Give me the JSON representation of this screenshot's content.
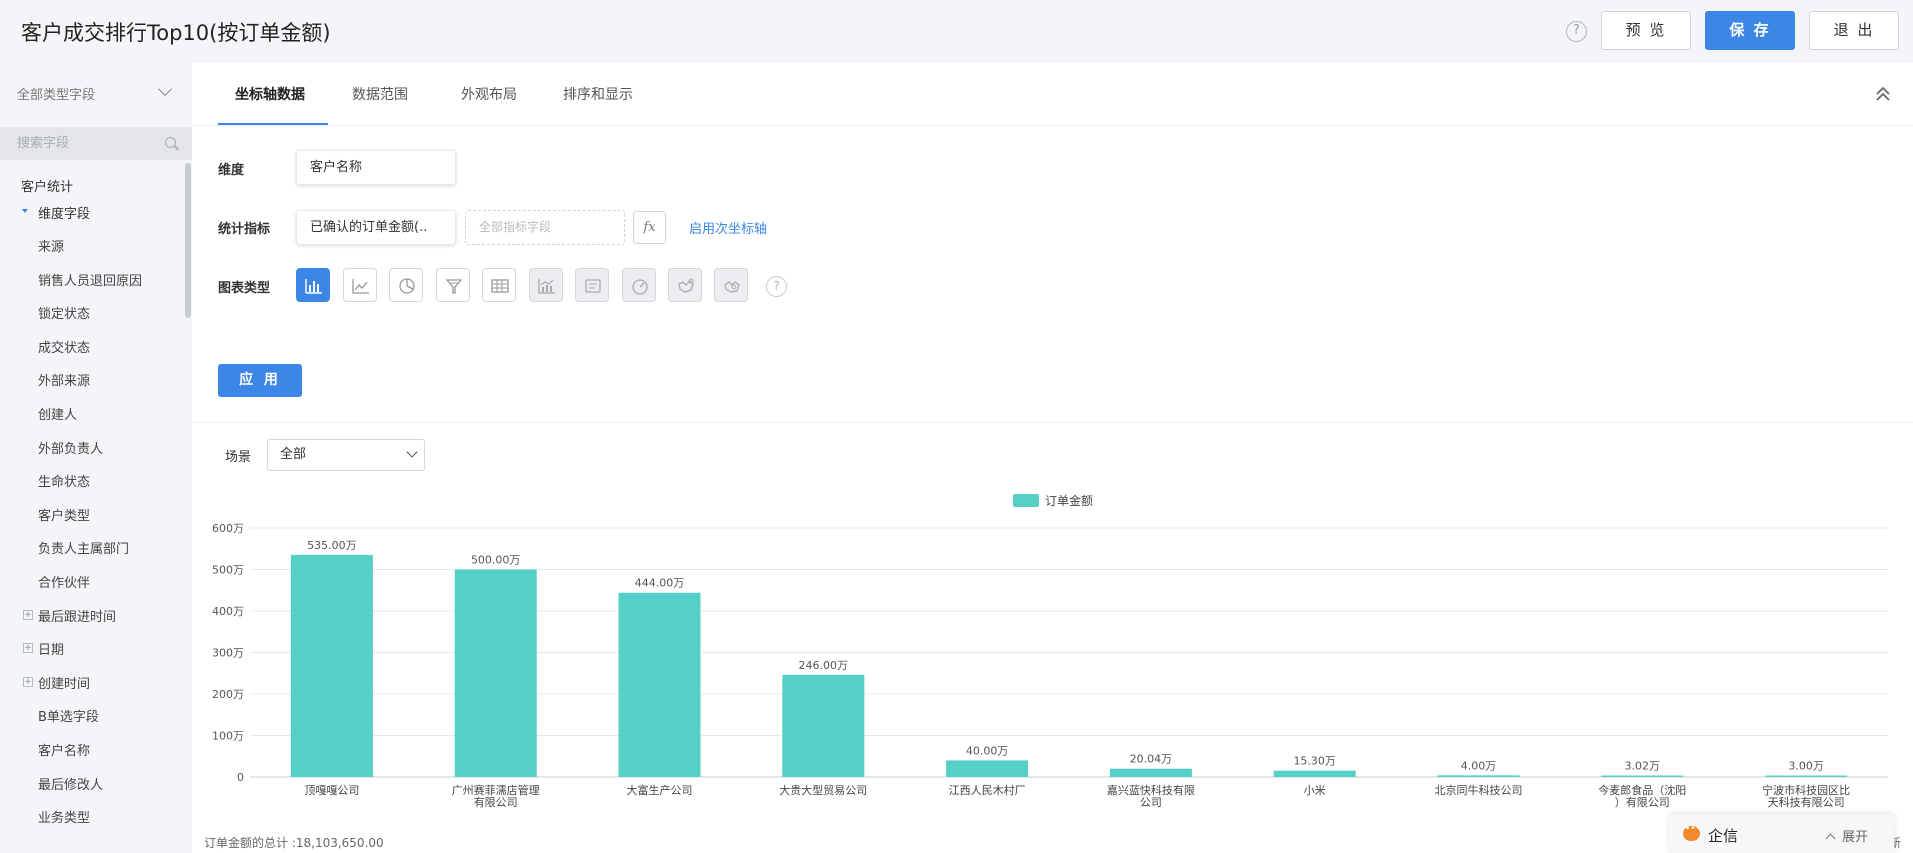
{
  "header": {
    "title": "客户成交排行Top10(按订单金额)",
    "help": "?",
    "preview_label": "预 览",
    "save_label": "保 存",
    "exit_label": "退 出"
  },
  "sidebar": {
    "field_type": "全部类型字段",
    "search_placeholder": "搜索字段",
    "group_title": "客户统计",
    "dimension_group": "维度字段",
    "items": [
      "来源",
      "销售人员退回原因",
      "锁定状态",
      "成交状态",
      "外部来源",
      "创建人",
      "外部负责人",
      "生命状态",
      "客户类型",
      "负责人主属部门",
      "合作伙伴"
    ],
    "expandable": [
      "最后跟进时间",
      "日期",
      "创建时间"
    ],
    "items_after": [
      "B单选字段",
      "客户名称",
      "最后修改人",
      "业务类型"
    ]
  },
  "tabs": [
    "坐标轴数据",
    "数据范围",
    "外观布局",
    "排序和显示"
  ],
  "config": {
    "dimension_label": "维度",
    "dimension_value": "客户名称",
    "metric_label": "统计指标",
    "metric_value": "已确认的订单金额(..",
    "metric_placeholder": "全部指标字段",
    "fx_label": "fx",
    "secondary_axis_link": "启用次坐标轴",
    "chart_type_label": "图表类型",
    "chart_types": [
      "bar-chart-icon",
      "line-chart-icon",
      "pie-chart-icon",
      "funnel-chart-icon",
      "table-chart-icon",
      "combo-chart-icon",
      "card-chart-icon",
      "gauge-chart-icon",
      "map-chart-icon",
      "map2-chart-icon"
    ],
    "chart_type_help": "?",
    "apply_label": "应 用"
  },
  "scene": {
    "label": "场景",
    "value": "全部"
  },
  "colors": {
    "accent": "#3b86e6",
    "bar": "#55d0c6"
  },
  "chart_data": {
    "type": "bar",
    "series": [
      {
        "name": "订单金额",
        "values": [
          535.0,
          500.0,
          444.0,
          246.0,
          40.0,
          20.04,
          15.3,
          4.0,
          3.02,
          3.0
        ]
      }
    ],
    "categories": [
      "顶嘎嘎公司",
      "广州赛菲濡店管理有限公司",
      "大富生产公司",
      "大贵大型贸易公司",
      "江西人民木村厂",
      "嘉兴蓝快科技有限公司",
      "小米",
      "北京同牛科技公司",
      "今麦郎食品（沈阳）有限公司",
      "宁波市科技园区比天科技有限公司"
    ],
    "category_lines": [
      [
        "顶嘎嘎公司"
      ],
      [
        "广州赛菲濡店管理",
        "有限公司"
      ],
      [
        "大富生产公司"
      ],
      [
        "大贵大型贸易公司"
      ],
      [
        "江西人民木村厂"
      ],
      [
        "嘉兴蓝快科技有限",
        "公司"
      ],
      [
        "小米"
      ],
      [
        "北京同牛科技公司"
      ],
      [
        "今麦郎食品（沈阳",
        "）有限公司"
      ],
      [
        "宁波市科技园区比",
        "天科技有限公司"
      ]
    ],
    "data_labels": [
      "535.00万",
      "500.00万",
      "444.00万",
      "246.00万",
      "40.00万",
      "20.04万",
      "15.30万",
      "4.00万",
      "3.02万",
      "3.00万"
    ],
    "y_ticks": [
      0,
      100,
      200,
      300,
      400,
      500,
      600
    ],
    "y_tick_labels": [
      "0",
      "100万",
      "200万",
      "300万",
      "400万",
      "500万",
      "600万"
    ],
    "ylim": [
      0,
      600
    ],
    "legend_position": "top-center",
    "grid": true
  },
  "footer": {
    "total_text": "订单金额的总计 :18,103,650.00",
    "refresh_text": "新"
  },
  "chat": {
    "title": "企信",
    "expand_label": "展开"
  }
}
